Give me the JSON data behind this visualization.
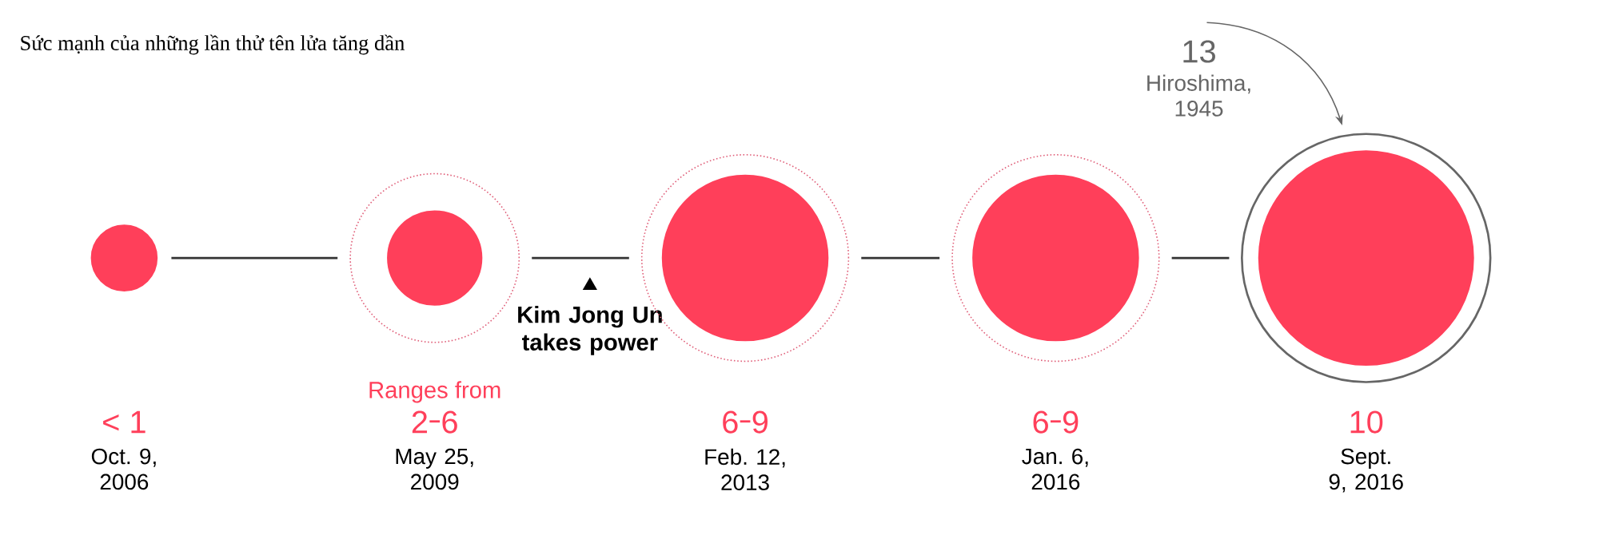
{
  "chart_data": {
    "type": "other",
    "title": "Sức mạnh của những lần thử tên lửa tăng dần",
    "categories": [
      "Oct. 9, 2006",
      "May 25, 2009",
      "Feb. 12, 2013",
      "Jan. 6, 2016",
      "Sept. 9, 2016"
    ],
    "series": [
      {
        "color": "#ff3f5a",
        "values": [
          1,
          2,
          6,
          6,
          10
        ],
        "value_labels": [
          "< 1",
          "2",
          "6",
          "6",
          "10"
        ]
      },
      {
        "color": "#e0607a",
        "line_style": "dotted",
        "values": [
          null,
          6,
          9,
          9,
          null
        ],
        "value_labels": [
          null,
          "6",
          "9",
          "9",
          null
        ]
      },
      {
        "name": "Hiroshima, 1945",
        "color": "#666666",
        "line_style": "solid",
        "values": [
          null,
          null,
          null,
          null,
          13
        ],
        "value_labels": [
          null,
          null,
          null,
          null,
          "13"
        ]
      }
    ],
    "annotations": [
      {
        "text": "Ranges from",
        "x": "May 25, 2009"
      },
      "Kim Jong Un takes power"
    ]
  }
}
